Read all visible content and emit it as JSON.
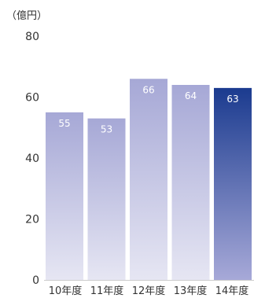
{
  "chart_data": {
    "type": "bar",
    "unit_label": "（億円）",
    "categories": [
      "10年度",
      "11年度",
      "12年度",
      "13年度",
      "14年度"
    ],
    "values": [
      55,
      53,
      66,
      64,
      63
    ],
    "data_labels": [
      "55",
      "53",
      "66",
      "64",
      "63"
    ],
    "yticks": [
      "0",
      "20",
      "40",
      "60",
      "80"
    ],
    "ylim": [
      0,
      80
    ],
    "grid": false,
    "legend": "none",
    "colors": {
      "bar_top": "#A6A8D6",
      "bar_bottom": "#E6E6F3",
      "highlight_top": "#1B3B8F",
      "highlight_bottom": "#A7A9D8",
      "axis": "#CCCCCC"
    },
    "highlight_index": 4
  }
}
